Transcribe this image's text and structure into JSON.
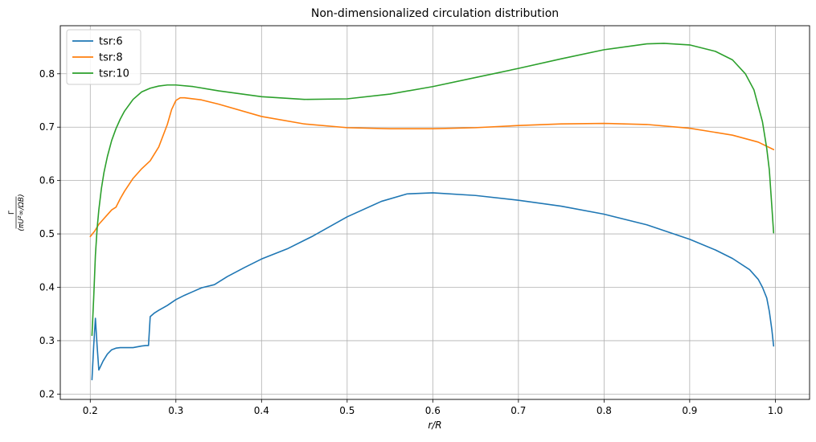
{
  "chart_data": {
    "type": "line",
    "title": "Non-dimensionalized circulation distribution",
    "xlabel": "r/R",
    "ylabel": {
      "numerator": "Γ",
      "denominator": "(πU²∞/ΩB)"
    },
    "xlim": [
      0.165,
      1.04
    ],
    "ylim": [
      0.19,
      0.89
    ],
    "xticks": [
      0.2,
      0.3,
      0.4,
      0.5,
      0.6,
      0.7,
      0.8,
      0.9,
      1.0
    ],
    "xtick_labels": [
      "0.2",
      "0.3",
      "0.4",
      "0.5",
      "0.6",
      "0.7",
      "0.8",
      "0.9",
      "1.0"
    ],
    "yticks": [
      0.2,
      0.3,
      0.4,
      0.5,
      0.6,
      0.7,
      0.8
    ],
    "ytick_labels": [
      "0.2",
      "0.3",
      "0.4",
      "0.5",
      "0.6",
      "0.7",
      "0.8"
    ],
    "grid": true,
    "legend_position": "top-left",
    "series": [
      {
        "name": "tsr:6",
        "color": "#1f77b4",
        "x": [
          0.202,
          0.204,
          0.206,
          0.208,
          0.21,
          0.215,
          0.22,
          0.225,
          0.23,
          0.235,
          0.24,
          0.25,
          0.26,
          0.265,
          0.268,
          0.27,
          0.275,
          0.28,
          0.29,
          0.3,
          0.31,
          0.32,
          0.33,
          0.345,
          0.36,
          0.38,
          0.4,
          0.43,
          0.46,
          0.5,
          0.54,
          0.57,
          0.6,
          0.65,
          0.7,
          0.75,
          0.8,
          0.85,
          0.9,
          0.93,
          0.95,
          0.97,
          0.98,
          0.985,
          0.99,
          0.993,
          0.996,
          0.998
        ],
        "y": [
          0.227,
          0.29,
          0.342,
          0.29,
          0.245,
          0.262,
          0.275,
          0.283,
          0.286,
          0.287,
          0.287,
          0.287,
          0.29,
          0.291,
          0.291,
          0.345,
          0.352,
          0.357,
          0.366,
          0.377,
          0.385,
          0.392,
          0.399,
          0.405,
          0.42,
          0.437,
          0.453,
          0.472,
          0.496,
          0.532,
          0.561,
          0.575,
          0.577,
          0.572,
          0.563,
          0.552,
          0.537,
          0.517,
          0.49,
          0.47,
          0.454,
          0.433,
          0.415,
          0.4,
          0.38,
          0.355,
          0.32,
          0.29
        ]
      },
      {
        "name": "tsr:8",
        "color": "#ff7f0e",
        "x": [
          0.2,
          0.205,
          0.21,
          0.215,
          0.22,
          0.225,
          0.23,
          0.235,
          0.24,
          0.245,
          0.25,
          0.26,
          0.27,
          0.28,
          0.29,
          0.295,
          0.3,
          0.305,
          0.31,
          0.33,
          0.35,
          0.4,
          0.45,
          0.5,
          0.55,
          0.6,
          0.65,
          0.7,
          0.75,
          0.8,
          0.85,
          0.9,
          0.95,
          0.98,
          0.998
        ],
        "y": [
          0.495,
          0.505,
          0.518,
          0.527,
          0.536,
          0.545,
          0.55,
          0.566,
          0.58,
          0.592,
          0.604,
          0.622,
          0.637,
          0.663,
          0.705,
          0.733,
          0.75,
          0.755,
          0.755,
          0.751,
          0.743,
          0.72,
          0.706,
          0.699,
          0.697,
          0.697,
          0.699,
          0.703,
          0.706,
          0.707,
          0.705,
          0.698,
          0.685,
          0.672,
          0.658
        ]
      },
      {
        "name": "tsr:10",
        "color": "#2ca02c",
        "x": [
          0.202,
          0.204,
          0.206,
          0.208,
          0.21,
          0.213,
          0.216,
          0.22,
          0.225,
          0.23,
          0.235,
          0.24,
          0.25,
          0.26,
          0.27,
          0.28,
          0.29,
          0.3,
          0.32,
          0.35,
          0.4,
          0.45,
          0.5,
          0.55,
          0.6,
          0.65,
          0.7,
          0.75,
          0.8,
          0.85,
          0.87,
          0.9,
          0.93,
          0.95,
          0.965,
          0.975,
          0.985,
          0.99,
          0.993,
          0.996,
          0.998
        ],
        "y": [
          0.31,
          0.38,
          0.46,
          0.51,
          0.545,
          0.585,
          0.615,
          0.645,
          0.675,
          0.697,
          0.715,
          0.73,
          0.752,
          0.766,
          0.773,
          0.777,
          0.779,
          0.779,
          0.776,
          0.768,
          0.757,
          0.752,
          0.753,
          0.762,
          0.776,
          0.793,
          0.81,
          0.828,
          0.845,
          0.856,
          0.857,
          0.854,
          0.842,
          0.826,
          0.8,
          0.77,
          0.71,
          0.66,
          0.62,
          0.55,
          0.502
        ]
      }
    ]
  }
}
